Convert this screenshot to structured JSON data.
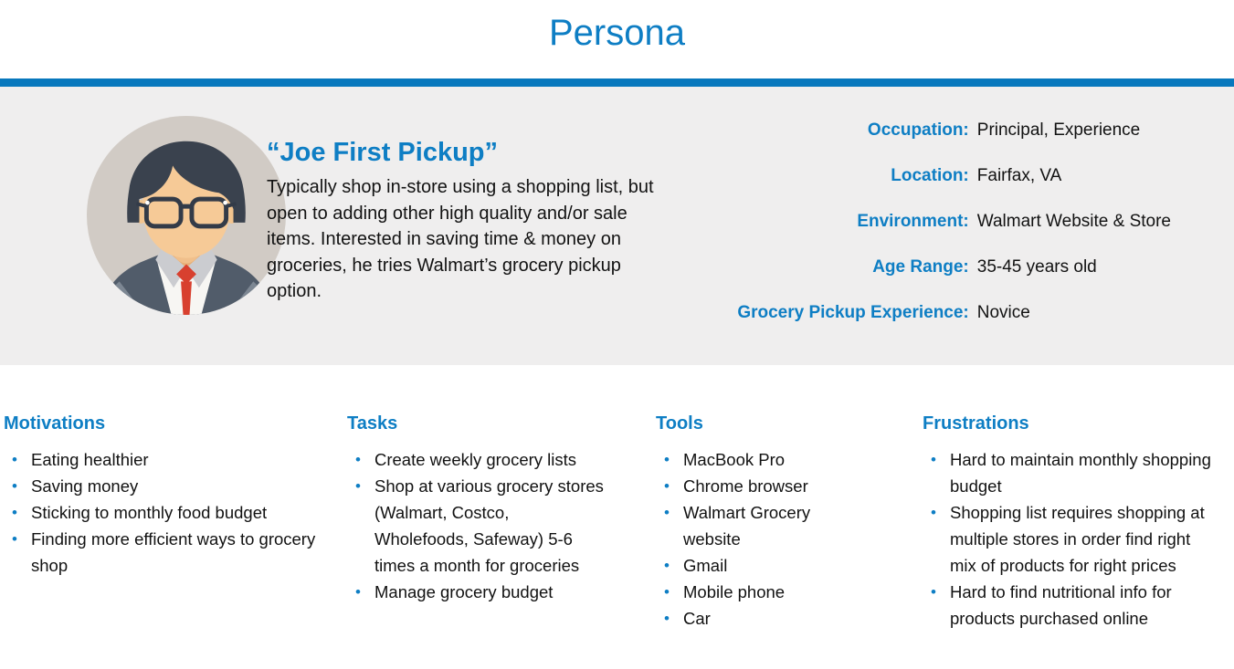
{
  "title": "Persona",
  "colors": {
    "accent": "#0e7ec4",
    "divider_bar": "#0878bd",
    "panel_background": "#efeeee"
  },
  "glyphs": {
    "bullet": "•"
  },
  "persona": {
    "name": "“Joe First Pickup”",
    "description": "Typically shop in-store using a shopping list, but open to adding other high quality and/or sale items. Interested in saving time & money on groceries, he tries Walmart’s grocery pickup option.",
    "avatar": "male-persona-avatar",
    "details": [
      {
        "label": "Occupation:",
        "value": "Principal, Experience"
      },
      {
        "label": "Location:",
        "value": "Fairfax, VA"
      },
      {
        "label": "Environment:",
        "value": "Walmart Website & Store"
      },
      {
        "label": "Age Range:",
        "value": "35-45 years old"
      },
      {
        "label": "Grocery Pickup Experience:",
        "value": "Novice"
      }
    ]
  },
  "columns": [
    {
      "heading": "Motivations",
      "items": [
        "Eating healthier",
        "Saving money",
        "Sticking to monthly food budget",
        "Finding more efficient ways to grocery shop"
      ]
    },
    {
      "heading": "Tasks",
      "items": [
        "Create weekly grocery lists",
        "Shop at various grocery stores (Walmart, Costco, Wholefoods, Safeway) 5-6 times a month for groceries",
        "Manage grocery budget"
      ]
    },
    {
      "heading": "Tools",
      "items": [
        "MacBook Pro",
        "Chrome browser",
        "Walmart Grocery website",
        "Gmail",
        "Mobile phone",
        "Car"
      ]
    },
    {
      "heading": "Frustrations",
      "items": [
        "Hard to maintain monthly shopping budget",
        "Shopping list requires shopping at multiple stores in order find right mix of products for right prices",
        "Hard to find nutritional info for products purchased online"
      ]
    }
  ]
}
